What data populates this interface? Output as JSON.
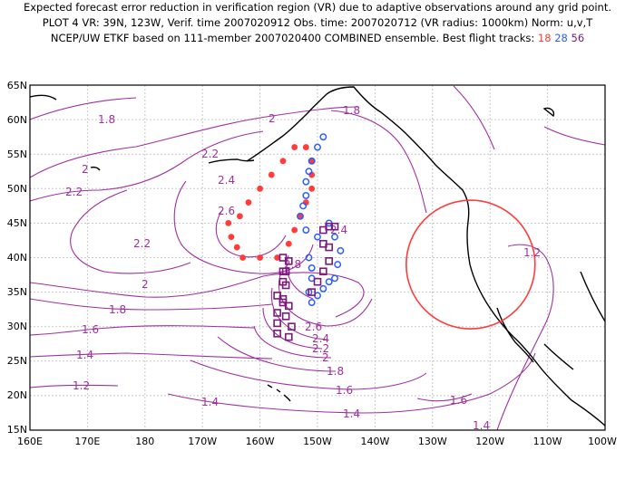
{
  "title": {
    "line1": "Expected forecast error reduction in verification region (VR) due to adaptive observations around any grid point.",
    "line2": "PLOT 4 VR: 39N, 123W, Verif. time 2007020912 Obs. time: 2007020712 (VR radius: 1000km) Norm: u,v,T",
    "line3_prefix": "NCEP/UW ETKF based on 111-member 2007020400 COMBINED ensemble.  Best flight tracks:",
    "track_18": "18",
    "track_28": "28",
    "track_56": "56"
  },
  "colors": {
    "contour": "#a030a0",
    "track_18": "#ff3b3b",
    "track_28": "#2b5cff",
    "track_56": "#7a1a7a",
    "vr_circle": "#ff3b3b",
    "coast": "#000000"
  },
  "axes": {
    "x_ticks": [
      "160E",
      "170E",
      "180",
      "170W",
      "160W",
      "150W",
      "140W",
      "130W",
      "120W",
      "110W",
      "100W"
    ],
    "y_ticks": [
      "65N",
      "60N",
      "55N",
      "50N",
      "45N",
      "40N",
      "35N",
      "30N",
      "25N",
      "20N",
      "15N"
    ]
  },
  "map_data": {
    "verification_region": {
      "center_lat": 39,
      "center_lon": -123,
      "radius_km": 1000
    },
    "contour_labels": [
      "1.2",
      "1.4",
      "1.6",
      "1.8",
      "2",
      "2.2",
      "2.4",
      "2.6",
      "2.8"
    ],
    "tracks": {
      "18": {
        "marker": "filled-circle",
        "points": [
          [
            -154,
            56
          ],
          [
            -156,
            54
          ],
          [
            -158,
            52
          ],
          [
            -160,
            50
          ],
          [
            -162,
            48
          ],
          [
            -163.5,
            46
          ],
          [
            -165.5,
            45
          ],
          [
            -165,
            43
          ],
          [
            -164,
            41.5
          ],
          [
            -163,
            40
          ],
          [
            -160,
            40
          ],
          [
            -157,
            40
          ],
          [
            -155,
            42
          ],
          [
            -154,
            44
          ],
          [
            -153,
            46
          ],
          [
            -152,
            48
          ],
          [
            -151,
            50
          ],
          [
            -151,
            52
          ],
          [
            -151,
            54
          ],
          [
            -152,
            56
          ]
        ]
      },
      "28": {
        "marker": "open-circle",
        "points": [
          [
            -149,
            57.5
          ],
          [
            -150,
            56
          ],
          [
            -151,
            54
          ],
          [
            -151.5,
            52.5
          ],
          [
            -152,
            51
          ],
          [
            -152,
            49
          ],
          [
            -152.5,
            47.5
          ],
          [
            -153,
            46
          ],
          [
            -152,
            44
          ],
          [
            -150,
            43
          ],
          [
            -148,
            45
          ],
          [
            -147,
            43
          ],
          [
            -146,
            41
          ],
          [
            -146.5,
            39
          ],
          [
            -147,
            37
          ],
          [
            -148,
            36.5
          ],
          [
            -149,
            35.5
          ],
          [
            -150,
            34.5
          ],
          [
            -151,
            33.5
          ],
          [
            -151.5,
            35
          ],
          [
            -151,
            37
          ],
          [
            -151,
            38.5
          ],
          [
            -151.5,
            40
          ]
        ]
      },
      "56": {
        "marker": "open-square",
        "points": [
          [
            -156,
            40
          ],
          [
            -155.5,
            38
          ],
          [
            -155.5,
            36
          ],
          [
            -156,
            34
          ],
          [
            -155,
            33
          ],
          [
            -155.5,
            31.5
          ],
          [
            -154.5,
            30
          ],
          [
            -155,
            28.5
          ],
          [
            -157,
            29
          ],
          [
            -157,
            30.5
          ],
          [
            -157,
            32
          ],
          [
            -156,
            33.5
          ],
          [
            -157,
            34.5
          ],
          [
            -156,
            36.5
          ],
          [
            -156,
            38
          ],
          [
            -155,
            39.5
          ],
          [
            -149,
            42
          ],
          [
            -149,
            44
          ],
          [
            -148,
            44.5
          ],
          [
            -147,
            44.5
          ],
          [
            -148,
            41.5
          ],
          [
            -148,
            39.5
          ],
          [
            -149,
            38
          ],
          [
            -150,
            36.5
          ],
          [
            -151,
            35
          ]
        ]
      }
    }
  }
}
